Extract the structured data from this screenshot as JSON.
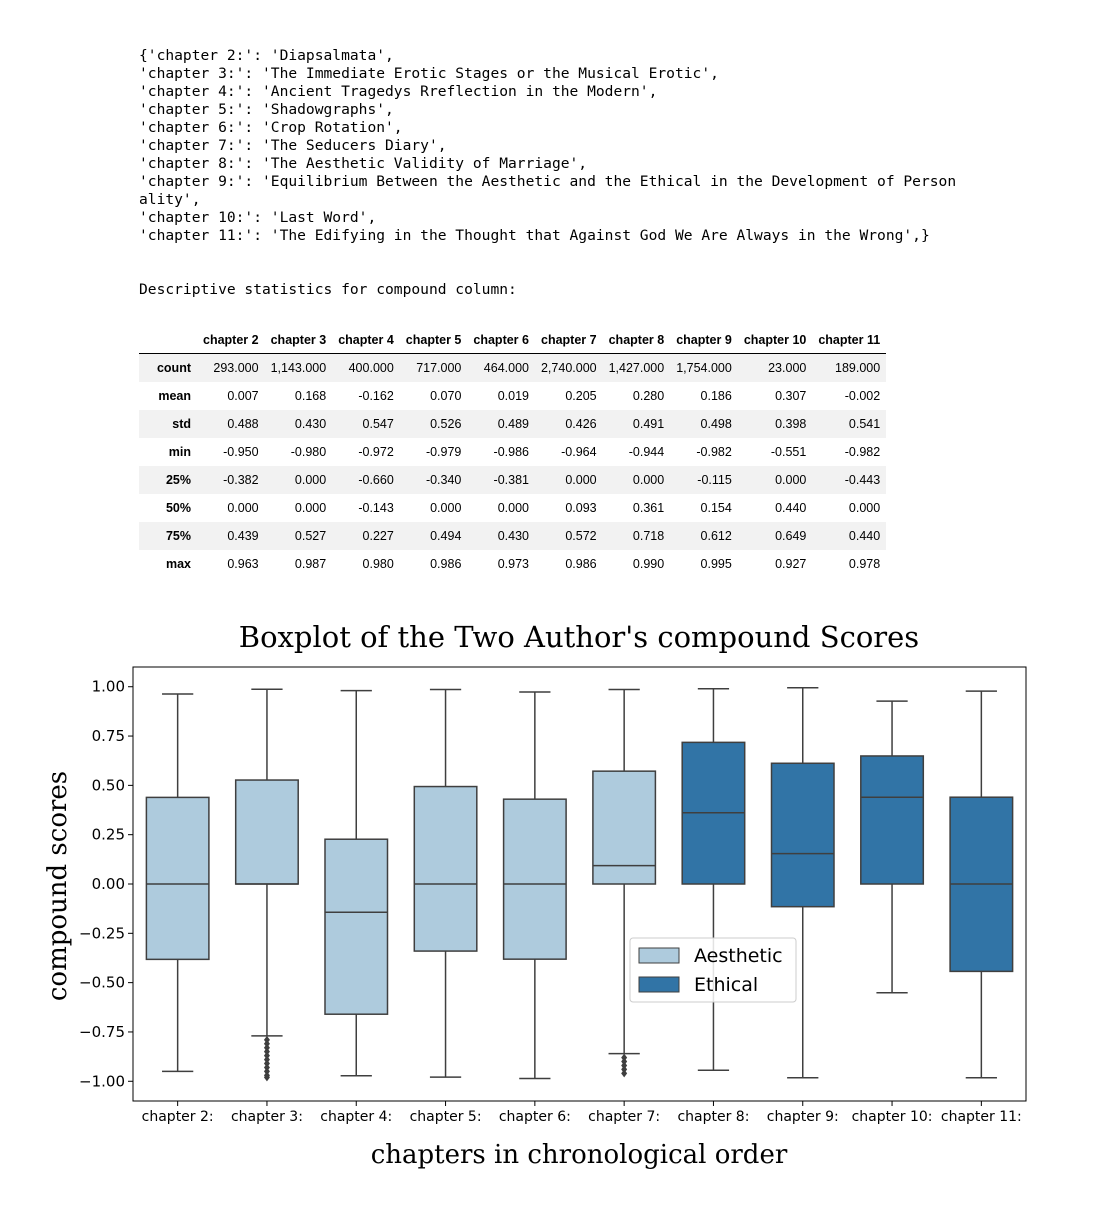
{
  "chapter_dict_lines": [
    "{'chapter 2:': 'Diapsalmata',",
    "'chapter 3:': 'The Immediate Erotic Stages or the Musical Erotic',",
    "'chapter 4:': 'Ancient Tragedys Rreflection in the Modern',",
    "'chapter 5:': 'Shadowgraphs',",
    "'chapter 6:': 'Crop Rotation',",
    "'chapter 7:': 'The Seducers Diary',",
    "'chapter 8:': 'The Aesthetic Validity of Marriage',",
    "'chapter 9:': 'Equilibrium Between the Aesthetic and the Ethical in the Development of Person",
    "ality',",
    "'chapter 10:': 'Last Word',",
    "'chapter 11:': 'The Edifying in the Thought that Against God We Are Always in the Wrong',}"
  ],
  "stats_title": "Descriptive statistics for compound column:",
  "stats_table": {
    "columns": [
      "chapter 2",
      "chapter 3",
      "chapter 4",
      "chapter 5",
      "chapter 6",
      "chapter 7",
      "chapter 8",
      "chapter 9",
      "chapter 10",
      "chapter 11"
    ],
    "rows": [
      {
        "label": "count",
        "values": [
          "293.000",
          "1,143.000",
          "400.000",
          "717.000",
          "464.000",
          "2,740.000",
          "1,427.000",
          "1,754.000",
          "23.000",
          "189.000"
        ]
      },
      {
        "label": "mean",
        "values": [
          "0.007",
          "0.168",
          "-0.162",
          "0.070",
          "0.019",
          "0.205",
          "0.280",
          "0.186",
          "0.307",
          "-0.002"
        ]
      },
      {
        "label": "std",
        "values": [
          "0.488",
          "0.430",
          "0.547",
          "0.526",
          "0.489",
          "0.426",
          "0.491",
          "0.498",
          "0.398",
          "0.541"
        ]
      },
      {
        "label": "min",
        "values": [
          "-0.950",
          "-0.980",
          "-0.972",
          "-0.979",
          "-0.986",
          "-0.964",
          "-0.944",
          "-0.982",
          "-0.551",
          "-0.982"
        ]
      },
      {
        "label": "25%",
        "values": [
          "-0.382",
          "0.000",
          "-0.660",
          "-0.340",
          "-0.381",
          "0.000",
          "0.000",
          "-0.115",
          "0.000",
          "-0.443"
        ]
      },
      {
        "label": "50%",
        "values": [
          "0.000",
          "0.000",
          "-0.143",
          "0.000",
          "0.000",
          "0.093",
          "0.361",
          "0.154",
          "0.440",
          "0.000"
        ]
      },
      {
        "label": "75%",
        "values": [
          "0.439",
          "0.527",
          "0.227",
          "0.494",
          "0.430",
          "0.572",
          "0.718",
          "0.612",
          "0.649",
          "0.440"
        ]
      },
      {
        "label": "max",
        "values": [
          "0.963",
          "0.987",
          "0.980",
          "0.986",
          "0.973",
          "0.986",
          "0.990",
          "0.995",
          "0.927",
          "0.978"
        ]
      }
    ]
  },
  "chart_data": {
    "type": "box",
    "title": "Boxplot of the Two Author's compound Scores",
    "xlabel": "chapters in chronological order",
    "ylabel": "compound scores",
    "ylim": [
      -1.1,
      1.1
    ],
    "yticks": [
      "1.00",
      "0.75",
      "0.50",
      "0.25",
      "0.00",
      "−0.25",
      "−0.50",
      "−0.75",
      "−1.00"
    ],
    "ytick_values": [
      1.0,
      0.75,
      0.5,
      0.25,
      0.0,
      -0.25,
      -0.5,
      -0.75,
      -1.0
    ],
    "grid": false,
    "legend_position": "center-right",
    "series": [
      {
        "name": "Aesthetic",
        "color": "#aecbdd"
      },
      {
        "name": "Ethical",
        "color": "#3174a6"
      }
    ],
    "boxes": [
      {
        "category": "chapter 2:",
        "series": "Aesthetic",
        "whisker_low": -0.95,
        "q1": -0.382,
        "median": 0.0,
        "q3": 0.439,
        "whisker_high": 0.963,
        "outliers": []
      },
      {
        "category": "chapter 3:",
        "series": "Aesthetic",
        "whisker_low": -0.77,
        "q1": 0.0,
        "median": 0.0,
        "q3": 0.527,
        "whisker_high": 0.987,
        "outliers": [
          -0.79,
          -0.81,
          -0.83,
          -0.85,
          -0.87,
          -0.89,
          -0.91,
          -0.93,
          -0.95,
          -0.97,
          -0.98
        ]
      },
      {
        "category": "chapter 4:",
        "series": "Aesthetic",
        "whisker_low": -0.972,
        "q1": -0.66,
        "median": -0.143,
        "q3": 0.227,
        "whisker_high": 0.98,
        "outliers": []
      },
      {
        "category": "chapter 5:",
        "series": "Aesthetic",
        "whisker_low": -0.979,
        "q1": -0.34,
        "median": 0.0,
        "q3": 0.494,
        "whisker_high": 0.986,
        "outliers": []
      },
      {
        "category": "chapter 6:",
        "series": "Aesthetic",
        "whisker_low": -0.986,
        "q1": -0.381,
        "median": 0.0,
        "q3": 0.43,
        "whisker_high": 0.973,
        "outliers": []
      },
      {
        "category": "chapter 7:",
        "series": "Aesthetic",
        "whisker_low": -0.86,
        "q1": 0.0,
        "median": 0.093,
        "q3": 0.572,
        "whisker_high": 0.986,
        "outliers": [
          -0.88,
          -0.9,
          -0.92,
          -0.94,
          -0.96
        ]
      },
      {
        "category": "chapter 8:",
        "series": "Ethical",
        "whisker_low": -0.944,
        "q1": 0.0,
        "median": 0.361,
        "q3": 0.718,
        "whisker_high": 0.99,
        "outliers": []
      },
      {
        "category": "chapter 9:",
        "series": "Ethical",
        "whisker_low": -0.982,
        "q1": -0.115,
        "median": 0.154,
        "q3": 0.612,
        "whisker_high": 0.995,
        "outliers": []
      },
      {
        "category": "chapter 10:",
        "series": "Ethical",
        "whisker_low": -0.551,
        "q1": 0.0,
        "median": 0.44,
        "q3": 0.649,
        "whisker_high": 0.927,
        "outliers": []
      },
      {
        "category": "chapter 11:",
        "series": "Ethical",
        "whisker_low": -0.982,
        "q1": -0.443,
        "median": 0.0,
        "q3": 0.44,
        "whisker_high": 0.978,
        "outliers": []
      }
    ]
  }
}
